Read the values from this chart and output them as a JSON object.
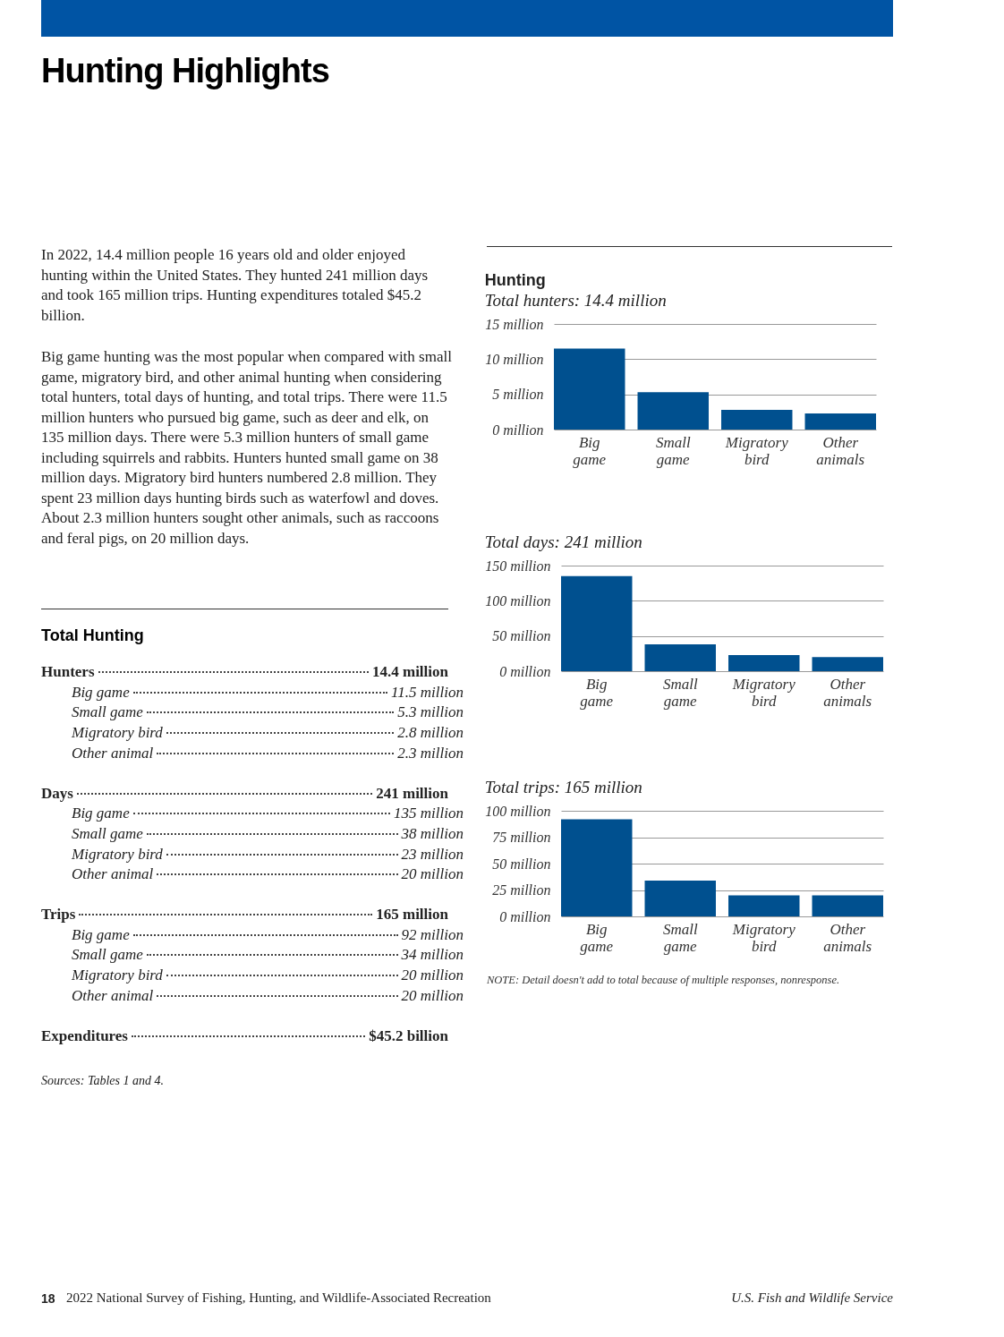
{
  "chart_data": [
    {
      "type": "other",
      "title": "Hunting Highlights",
      "annotations": [
        "In 2022, 14.4 million people 16 years old and older enjoyed hunting within the United States. They hunted 241 million days and took 165 million trips. Hunting expenditures totaled $45.2 billion.",
        "Big game hunting was the most popular when compared with small game, migratory bird, and other animal hunting when considering total hunters, total days of hunting, and total trips. There were 11.5 million hunters who pursued big game, such as deer and elk, on 135 million days. There were 5.3 million hunters of small game including squirrels and rabbits. Hunters hunted small game on 38 million days. Migratory bird hunters numbered 2.8 million. They spent 23 million days hunting birds such as waterfowl and doves. About 2.3 million hunters sought other animals, such as raccoons and feral pigs, on 20 million days.",
        "Total Hunting",
        "Hunters",
        "14.4 million",
        "Big game",
        "11.5 million",
        "Small game",
        "5.3 million",
        "Migratory bird",
        "2.8 million",
        "Other animal",
        "2.3 million",
        "Days",
        "241 million",
        "Big game",
        "135 million",
        "Small game",
        "38 million",
        "Migratory bird",
        "23 million",
        "Other animal",
        "20 million",
        "Trips",
        "165 million",
        "Big game",
        "92 million",
        "Small game",
        "34 million",
        "Migratory bird",
        "20 million",
        "Other animal",
        "20 million",
        "Expenditures",
        "$45.2 billion",
        "Sources: Tables 1 and 4.",
        "18",
        "2022 National Survey of Fishing, Hunting, and Wildlife-Associated Recreation",
        "U.S. Fish and Wildlife Service"
      ]
    },
    {
      "type": "bar",
      "title": "Hunting",
      "subtitle": "Total hunters: 14.4 million",
      "categories": [
        "Big game",
        "Small game",
        "Migratory bird",
        "Other animals"
      ],
      "values": [
        11.5,
        5.3,
        2.8,
        2.3
      ],
      "color": "#00508f",
      "ylim": [
        0,
        15
      ],
      "yticks": [
        {
          "value": 0,
          "label": "0 million"
        },
        {
          "value": 5,
          "label": "5 million"
        },
        {
          "value": 10,
          "label": "10 million"
        },
        {
          "value": 15,
          "label": "15 million"
        }
      ],
      "grid": "y"
    },
    {
      "type": "bar",
      "title": "Total days: 241 million",
      "categories": [
        "Big game",
        "Small game",
        "Migratory bird",
        "Other animals"
      ],
      "values": [
        135,
        38,
        23,
        20
      ],
      "color": "#00508f",
      "ylim": [
        0,
        150
      ],
      "yticks": [
        {
          "value": 0,
          "label": "0 million"
        },
        {
          "value": 50,
          "label": "50 million"
        },
        {
          "value": 100,
          "label": "100 million"
        },
        {
          "value": 150,
          "label": "150 million"
        }
      ],
      "grid": "y"
    },
    {
      "type": "bar",
      "title": "Total trips: 165 million",
      "categories": [
        "Big game",
        "Small game",
        "Migratory bird",
        "Other animals"
      ],
      "values": [
        92,
        34,
        20,
        20
      ],
      "color": "#00508f",
      "ylim": [
        0,
        100
      ],
      "yticks": [
        {
          "value": 0,
          "label": "0 million"
        },
        {
          "value": 25,
          "label": "25 million"
        },
        {
          "value": 50,
          "label": "50 million"
        },
        {
          "value": 75,
          "label": "75 million"
        },
        {
          "value": 100,
          "label": "100 million"
        }
      ],
      "grid": "y",
      "annotations": [
        "NOTE: Detail doesn't add to total because of multiple responses, nonresponse."
      ]
    }
  ]
}
